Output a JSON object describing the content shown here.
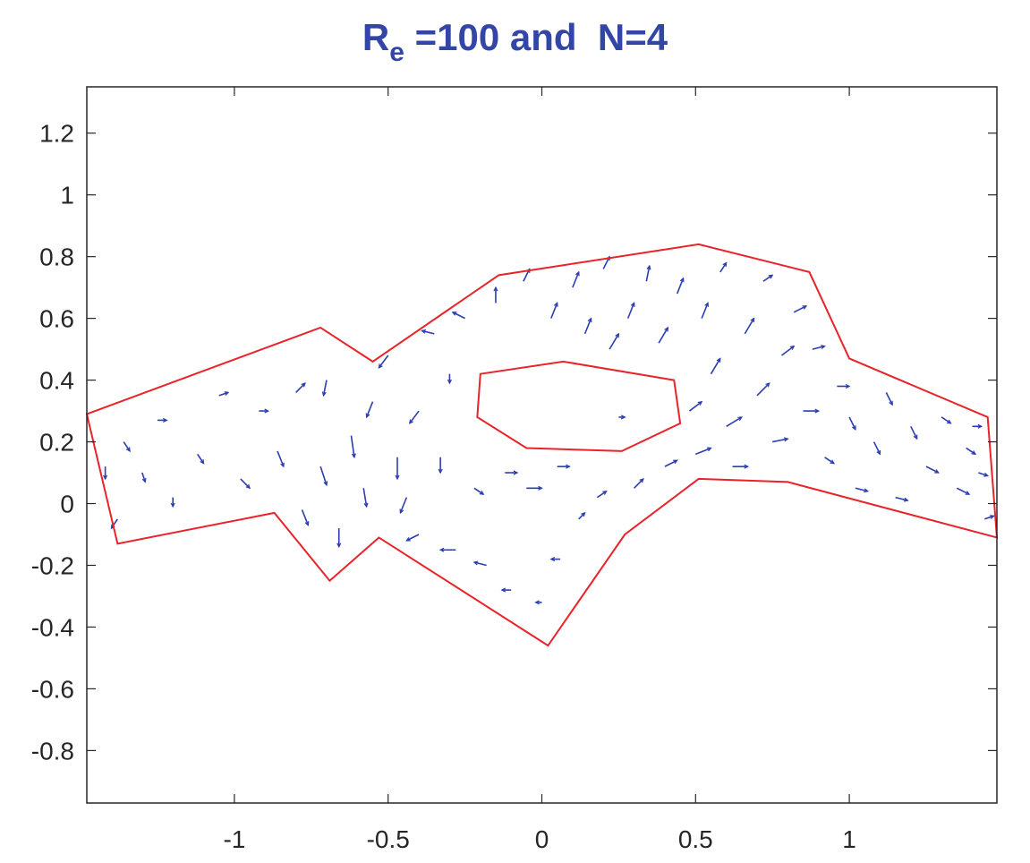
{
  "chart_data": {
    "type": "quiver",
    "title": {
      "main": "R",
      "subscript": "e",
      "rest": " =100 and  N=4"
    },
    "title_color": "#3346a8",
    "xlim": [
      -1.48,
      1.48
    ],
    "ylim": [
      -0.97,
      1.35
    ],
    "xticks": [
      -1,
      -0.5,
      0,
      0.5,
      1
    ],
    "xtick_labels": [
      "-1",
      "-0.5",
      "0",
      "0.5",
      "1"
    ],
    "yticks": [
      1.2,
      1,
      0.8,
      0.6,
      0.4,
      0.2,
      0,
      -0.2,
      -0.4,
      -0.6,
      -0.8
    ],
    "ytick_labels": [
      "1.2",
      "1",
      "0.8",
      "0.6",
      "0.4",
      "0.2",
      "0",
      "-0.2",
      "-0.4",
      "-0.6",
      "-0.8"
    ],
    "grid": false,
    "boundary_color": "#e8232a",
    "vector_color": "#2b3db0",
    "outer_boundary": [
      [
        -1.48,
        0.29
      ],
      [
        -0.72,
        0.57
      ],
      [
        -0.55,
        0.46
      ],
      [
        -0.14,
        0.74
      ],
      [
        0.51,
        0.84
      ],
      [
        0.87,
        0.75
      ],
      [
        1.0,
        0.47
      ],
      [
        1.45,
        0.28
      ],
      [
        1.48,
        -0.11
      ],
      [
        0.8,
        0.07
      ],
      [
        0.51,
        0.08
      ],
      [
        0.27,
        -0.1
      ],
      [
        0.02,
        -0.46
      ],
      [
        -0.53,
        -0.11
      ],
      [
        -0.69,
        -0.25
      ],
      [
        -0.87,
        -0.03
      ],
      [
        -1.38,
        -0.13
      ]
    ],
    "inner_boundary": [
      [
        -0.2,
        0.42
      ],
      [
        0.07,
        0.46
      ],
      [
        0.43,
        0.4
      ],
      [
        0.45,
        0.26
      ],
      [
        0.26,
        0.17
      ],
      [
        -0.05,
        0.18
      ],
      [
        -0.21,
        0.28
      ]
    ],
    "vectors": [
      [
        -1.42,
        0.12,
        0.0,
        -0.04
      ],
      [
        -1.36,
        0.2,
        0.02,
        -0.03
      ],
      [
        -1.3,
        0.1,
        0.01,
        -0.03
      ],
      [
        -1.25,
        0.27,
        0.03,
        0.0
      ],
      [
        -1.38,
        -0.05,
        -0.02,
        -0.03
      ],
      [
        -1.2,
        0.02,
        0.0,
        -0.03
      ],
      [
        -1.12,
        0.16,
        0.02,
        -0.03
      ],
      [
        -1.05,
        0.35,
        0.03,
        0.01
      ],
      [
        -0.98,
        0.08,
        0.03,
        -0.03
      ],
      [
        -0.92,
        0.3,
        0.03,
        0.0
      ],
      [
        -0.86,
        0.17,
        0.02,
        -0.05
      ],
      [
        -0.8,
        0.36,
        0.03,
        0.03
      ],
      [
        -0.78,
        -0.02,
        0.02,
        -0.05
      ],
      [
        -0.72,
        0.12,
        0.02,
        -0.06
      ],
      [
        -0.7,
        0.4,
        -0.01,
        -0.05
      ],
      [
        -0.66,
        -0.08,
        0.0,
        -0.06
      ],
      [
        -0.62,
        0.22,
        0.01,
        -0.07
      ],
      [
        -0.58,
        0.05,
        0.01,
        -0.06
      ],
      [
        -0.55,
        0.33,
        -0.02,
        -0.05
      ],
      [
        -0.5,
        0.48,
        -0.03,
        -0.04
      ],
      [
        -0.47,
        0.15,
        0.0,
        -0.07
      ],
      [
        -0.44,
        0.02,
        -0.02,
        -0.05
      ],
      [
        -0.4,
        -0.1,
        -0.04,
        -0.02
      ],
      [
        -0.4,
        0.3,
        -0.03,
        -0.04
      ],
      [
        -0.35,
        0.55,
        -0.04,
        0.01
      ],
      [
        -0.33,
        0.15,
        0.0,
        -0.05
      ],
      [
        -0.28,
        -0.15,
        -0.05,
        0.0
      ],
      [
        -0.25,
        0.6,
        -0.04,
        0.02
      ],
      [
        -0.22,
        0.05,
        0.03,
        -0.02
      ],
      [
        -0.18,
        -0.2,
        -0.04,
        0.01
      ],
      [
        -0.15,
        0.65,
        0.0,
        0.05
      ],
      [
        -0.12,
        0.1,
        0.04,
        0.0
      ],
      [
        -0.1,
        -0.28,
        -0.03,
        0.0
      ],
      [
        -0.06,
        0.72,
        0.02,
        0.04
      ],
      [
        -0.05,
        0.05,
        0.05,
        0.0
      ],
      [
        0.0,
        -0.32,
        -0.02,
        0.0
      ],
      [
        0.03,
        0.6,
        0.02,
        0.05
      ],
      [
        0.05,
        0.12,
        0.04,
        0.0
      ],
      [
        0.06,
        -0.18,
        -0.03,
        0.0
      ],
      [
        0.1,
        0.7,
        0.02,
        0.05
      ],
      [
        0.12,
        -0.05,
        0.02,
        0.02
      ],
      [
        0.14,
        0.55,
        0.02,
        0.05
      ],
      [
        0.18,
        0.02,
        0.03,
        0.02
      ],
      [
        0.2,
        0.76,
        0.02,
        0.04
      ],
      [
        0.22,
        0.5,
        0.03,
        0.05
      ],
      [
        0.28,
        0.6,
        0.02,
        0.05
      ],
      [
        0.3,
        0.05,
        0.03,
        0.03
      ],
      [
        0.34,
        0.72,
        0.01,
        0.05
      ],
      [
        0.38,
        0.52,
        0.03,
        0.05
      ],
      [
        0.4,
        0.12,
        0.04,
        0.02
      ],
      [
        0.44,
        0.68,
        0.02,
        0.05
      ],
      [
        0.48,
        0.3,
        0.04,
        0.03
      ],
      [
        0.5,
        0.16,
        0.05,
        0.02
      ],
      [
        0.52,
        0.6,
        0.02,
        0.05
      ],
      [
        0.55,
        0.42,
        0.03,
        0.05
      ],
      [
        0.58,
        0.75,
        0.02,
        0.03
      ],
      [
        0.6,
        0.25,
        0.05,
        0.03
      ],
      [
        0.62,
        0.12,
        0.05,
        0.0
      ],
      [
        0.66,
        0.55,
        0.03,
        0.05
      ],
      [
        0.7,
        0.35,
        0.04,
        0.04
      ],
      [
        0.72,
        0.72,
        0.03,
        0.02
      ],
      [
        0.75,
        0.2,
        0.05,
        0.01
      ],
      [
        0.78,
        0.48,
        0.04,
        0.03
      ],
      [
        0.82,
        0.62,
        0.04,
        0.02
      ],
      [
        0.85,
        0.3,
        0.05,
        0.0
      ],
      [
        0.88,
        0.5,
        0.04,
        0.01
      ],
      [
        0.92,
        0.15,
        0.03,
        -0.02
      ],
      [
        0.96,
        0.38,
        0.04,
        0.0
      ],
      [
        1.0,
        0.28,
        0.02,
        -0.04
      ],
      [
        1.02,
        0.05,
        0.04,
        -0.01
      ],
      [
        1.08,
        0.2,
        0.02,
        -0.04
      ],
      [
        1.12,
        0.36,
        0.02,
        -0.04
      ],
      [
        1.15,
        0.02,
        0.04,
        -0.01
      ],
      [
        1.2,
        0.25,
        0.02,
        -0.04
      ],
      [
        1.25,
        0.12,
        0.04,
        -0.02
      ],
      [
        1.3,
        0.28,
        0.03,
        -0.02
      ],
      [
        1.35,
        0.05,
        0.04,
        -0.02
      ],
      [
        1.38,
        0.18,
        0.03,
        -0.02
      ],
      [
        1.42,
        0.1,
        0.03,
        -0.01
      ],
      [
        1.44,
        -0.05,
        0.03,
        0.01
      ],
      [
        1.4,
        0.25,
        0.03,
        0.0
      ],
      [
        -1.44,
        0.25,
        0.0,
        0.0
      ],
      [
        -0.3,
        0.42,
        0.0,
        -0.03
      ],
      [
        0.25,
        0.28,
        0.02,
        0.0
      ]
    ]
  }
}
